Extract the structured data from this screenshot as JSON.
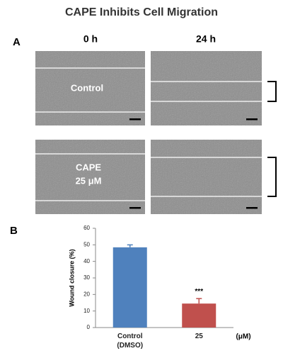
{
  "title": "CAPE Inhibits Cell Migration",
  "panel_a": {
    "label": "A",
    "columns": [
      "0 h",
      "24 h"
    ],
    "image_labels": [
      [
        "Control"
      ],
      [
        "CAPE",
        "25 μM"
      ]
    ]
  },
  "chart_data": {
    "type": "bar",
    "panel_label": "B",
    "categories": [
      "Control (DMSO)",
      "25"
    ],
    "x_unit": "(μM)",
    "values": [
      48.5,
      14.5
    ],
    "errors": [
      1.5,
      3
    ],
    "colors": [
      "#4f81bd",
      "#c0504d"
    ],
    "annotations": [
      "***"
    ],
    "ylabel": "Wound closure (%)",
    "ylim": [
      0,
      60
    ],
    "yticks": [
      0,
      10,
      20,
      30,
      40,
      50,
      60
    ]
  }
}
